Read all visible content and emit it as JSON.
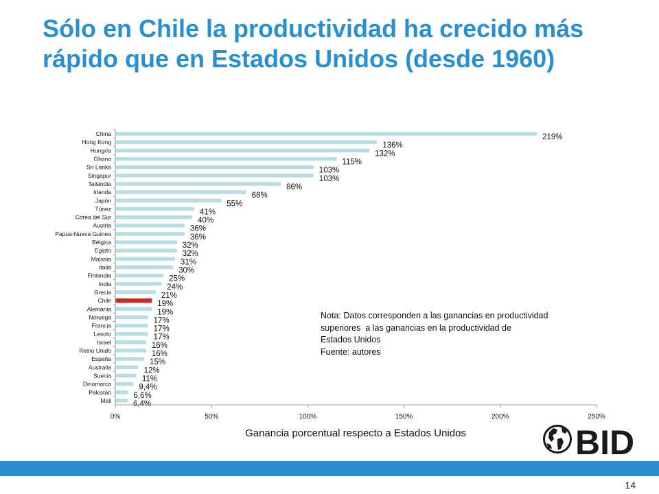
{
  "slide": {
    "title": "Sólo en Chile la productividad ha crecido más rápido que en Estados Unidos (desde 1960)",
    "page_number": "14",
    "note": {
      "lines": [
        "Nota: Datos corresponden a las ganancias en productividad",
        "superiores  a las ganancias en la productividad de",
        "Estados Unidos",
        "Fuente: autores"
      ]
    },
    "logo_text": "BID"
  },
  "colors": {
    "title": "#2a8fcf",
    "bar": "#b8dde2",
    "highlight_bar": "#e02020",
    "footer_band": "#2a8fcf",
    "axis": "#999999"
  },
  "chart_data": {
    "type": "bar",
    "orientation": "horizontal",
    "xlabel": "Ganancia porcentual respecto a Estados Unidos",
    "xlim": [
      0,
      250
    ],
    "xticks": [
      "0%",
      "50%",
      "100%",
      "150%",
      "200%",
      "250%"
    ],
    "highlight": "Chile",
    "grid": false,
    "categories": [
      "China",
      "Hong Kong",
      "Hungría",
      "Ghana",
      "Sri Lanka",
      "Singapur",
      "Tailandia",
      "Irlanda",
      "Japón",
      "Túnez",
      "Corea del Sur",
      "Austria",
      "Papua-Nueva Guinea",
      "Bélgica",
      "Egipto",
      "Malasia",
      "Italia",
      "Finlandia",
      "India",
      "Grecia",
      "Chile",
      "Alemania",
      "Noruega",
      "Francia",
      "Lesoto",
      "Israel",
      "Reino Unido",
      "España",
      "Australia",
      "Suecia",
      "Dinamarca",
      "Pakistán",
      "Mali"
    ],
    "values": [
      219,
      136,
      132,
      115,
      103,
      103,
      86,
      68,
      55,
      41,
      40,
      36,
      36,
      32,
      32,
      31,
      30,
      25,
      24,
      21,
      19,
      19,
      17,
      17,
      17,
      16,
      16,
      15,
      12,
      11,
      9.4,
      6.6,
      6.4
    ],
    "data_labels": [
      "219%",
      "136%",
      "132%",
      "115%",
      "103%",
      "103%",
      "86%",
      "68%",
      "55%",
      "41%",
      "40%",
      "36%",
      "36%",
      "32%",
      "32%",
      "31%",
      "30%",
      "25%",
      "24%",
      "21%",
      "19%",
      "19%",
      "17%",
      "17%",
      "17%",
      "16%",
      "16%",
      "15%",
      "12%",
      "11%",
      "9,4%",
      "6,6%",
      "6,4%"
    ]
  }
}
